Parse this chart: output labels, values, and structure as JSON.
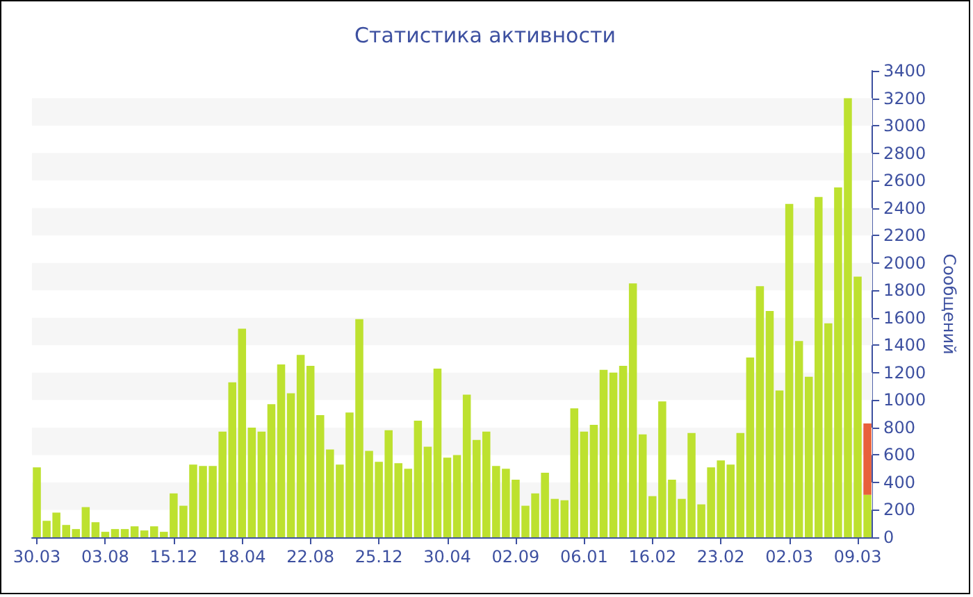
{
  "chart_data": {
    "type": "bar",
    "title": "Статистика активности",
    "ylabel": "Сообщений",
    "categories": [
      "30.03",
      null,
      null,
      null,
      null,
      null,
      null,
      "03.08",
      null,
      null,
      null,
      null,
      null,
      null,
      "15.12",
      null,
      null,
      null,
      null,
      null,
      null,
      "18.04",
      null,
      null,
      null,
      null,
      null,
      null,
      "22.08",
      null,
      null,
      null,
      null,
      null,
      null,
      "25.12",
      null,
      null,
      null,
      null,
      null,
      null,
      "30.04",
      null,
      null,
      null,
      null,
      null,
      null,
      "02.09",
      null,
      null,
      null,
      null,
      null,
      null,
      "06.01",
      null,
      null,
      null,
      null,
      null,
      null,
      "16.02",
      null,
      null,
      null,
      null,
      null,
      null,
      "23.02",
      null,
      null,
      null,
      null,
      null,
      null,
      "02.03",
      null,
      null,
      null,
      null,
      null,
      null,
      "09.03",
      null
    ],
    "stacked": true,
    "series": [
      {
        "color": "#bde12f",
        "values": [
          510,
          120,
          180,
          90,
          60,
          220,
          110,
          40,
          60,
          60,
          80,
          50,
          80,
          40,
          320,
          230,
          530,
          520,
          520,
          770,
          1130,
          1520,
          800,
          770,
          970,
          1260,
          1050,
          1330,
          1250,
          890,
          640,
          530,
          910,
          1590,
          630,
          550,
          780,
          540,
          500,
          850,
          660,
          1230,
          580,
          600,
          1040,
          710,
          770,
          520,
          500,
          420,
          230,
          320,
          470,
          280,
          270,
          940,
          770,
          820,
          1220,
          1200,
          1250,
          1850,
          750,
          300,
          990,
          420,
          280,
          760,
          240,
          510,
          560,
          530,
          760,
          1310,
          1830,
          1650,
          1070,
          2430,
          1430,
          1170,
          2480,
          1560,
          2550,
          3200,
          1900,
          310
        ]
      },
      {
        "color": "#e8603c",
        "values": [
          null,
          null,
          null,
          null,
          null,
          null,
          null,
          null,
          null,
          null,
          null,
          null,
          null,
          null,
          null,
          null,
          null,
          null,
          null,
          null,
          null,
          null,
          null,
          null,
          null,
          null,
          null,
          null,
          null,
          null,
          null,
          null,
          null,
          null,
          null,
          null,
          null,
          null,
          null,
          null,
          null,
          null,
          null,
          null,
          null,
          null,
          null,
          null,
          null,
          null,
          null,
          null,
          null,
          null,
          null,
          null,
          null,
          null,
          null,
          null,
          null,
          null,
          null,
          null,
          null,
          null,
          null,
          null,
          null,
          null,
          null,
          null,
          null,
          null,
          null,
          null,
          null,
          null,
          null,
          null,
          null,
          null,
          null,
          null,
          null,
          520
        ]
      }
    ],
    "ylim": [
      0,
      3400
    ],
    "yticks": [
      0,
      200,
      400,
      600,
      800,
      1000,
      1200,
      1400,
      1600,
      1800,
      2000,
      2200,
      2400,
      2600,
      2800,
      3000,
      3200,
      3400
    ],
    "bands": [
      {
        "axis": "y",
        "from": 200,
        "to": 400,
        "color": "#f6f6f6"
      },
      {
        "axis": "y",
        "from": 600,
        "to": 800,
        "color": "#f6f6f6"
      },
      {
        "axis": "y",
        "from": 1000,
        "to": 1200,
        "color": "#f6f6f6"
      },
      {
        "axis": "y",
        "from": 1400,
        "to": 1600,
        "color": "#f6f6f6"
      },
      {
        "axis": "y",
        "from": 1800,
        "to": 2000,
        "color": "#f6f6f6"
      },
      {
        "axis": "y",
        "from": 2200,
        "to": 2400,
        "color": "#f6f6f6"
      },
      {
        "axis": "y",
        "from": 2600,
        "to": 2800,
        "color": "#f6f6f6"
      },
      {
        "axis": "y",
        "from": 3000,
        "to": 3200,
        "color": "#f6f6f6"
      }
    ]
  }
}
